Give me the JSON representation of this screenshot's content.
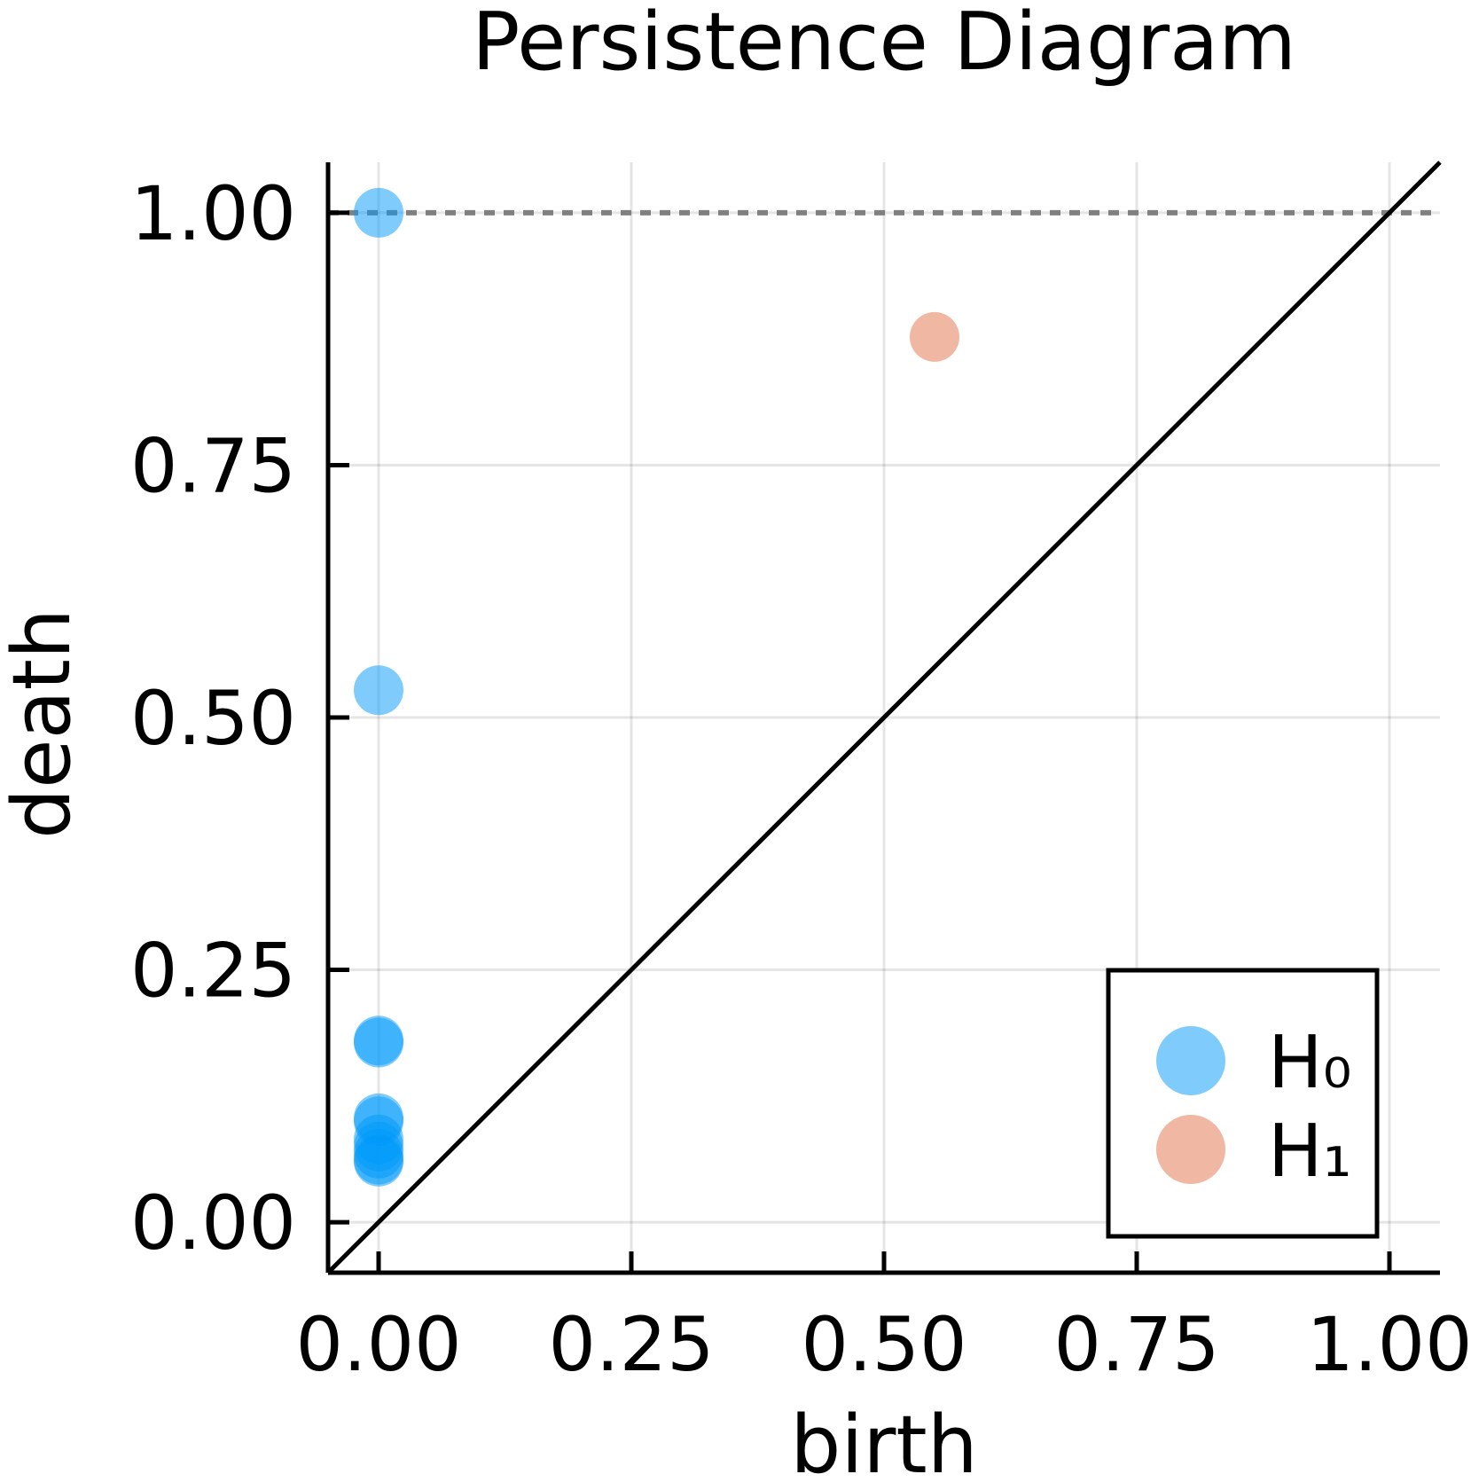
{
  "chart_data": {
    "type": "scatter",
    "title": "Persistence Diagram",
    "xlabel": "birth",
    "ylabel": "death",
    "xlim": [
      -0.05,
      1.05
    ],
    "ylim": [
      -0.05,
      1.05
    ],
    "xticks": [
      "0.00",
      "0.25",
      "0.50",
      "0.75",
      "1.00"
    ],
    "yticks": [
      "0.00",
      "0.25",
      "0.50",
      "0.75",
      "1.00"
    ],
    "grid": true,
    "legend_position": "bottom-right",
    "diagonal": {
      "from": [
        -0.05,
        -0.05
      ],
      "to": [
        1.05,
        1.05
      ]
    },
    "infinity_line": {
      "y": 1.0,
      "style": "dashed",
      "color": "#808080"
    },
    "series": [
      {
        "name": "H₀",
        "color": "#009AF9",
        "opacity": 0.5,
        "points": [
          [
            0,
            1.0
          ],
          [
            0,
            0.527
          ],
          [
            0,
            0.18
          ],
          [
            0,
            0.178
          ],
          [
            0,
            0.103
          ],
          [
            0,
            0.1
          ],
          [
            0,
            0.082
          ],
          [
            0,
            0.075
          ],
          [
            0,
            0.068
          ],
          [
            0,
            0.062
          ],
          [
            0,
            0.06
          ]
        ]
      },
      {
        "name": "H₁",
        "color": "#E26F46",
        "opacity": 0.5,
        "points": [
          [
            0.55,
            0.877
          ]
        ]
      }
    ]
  }
}
